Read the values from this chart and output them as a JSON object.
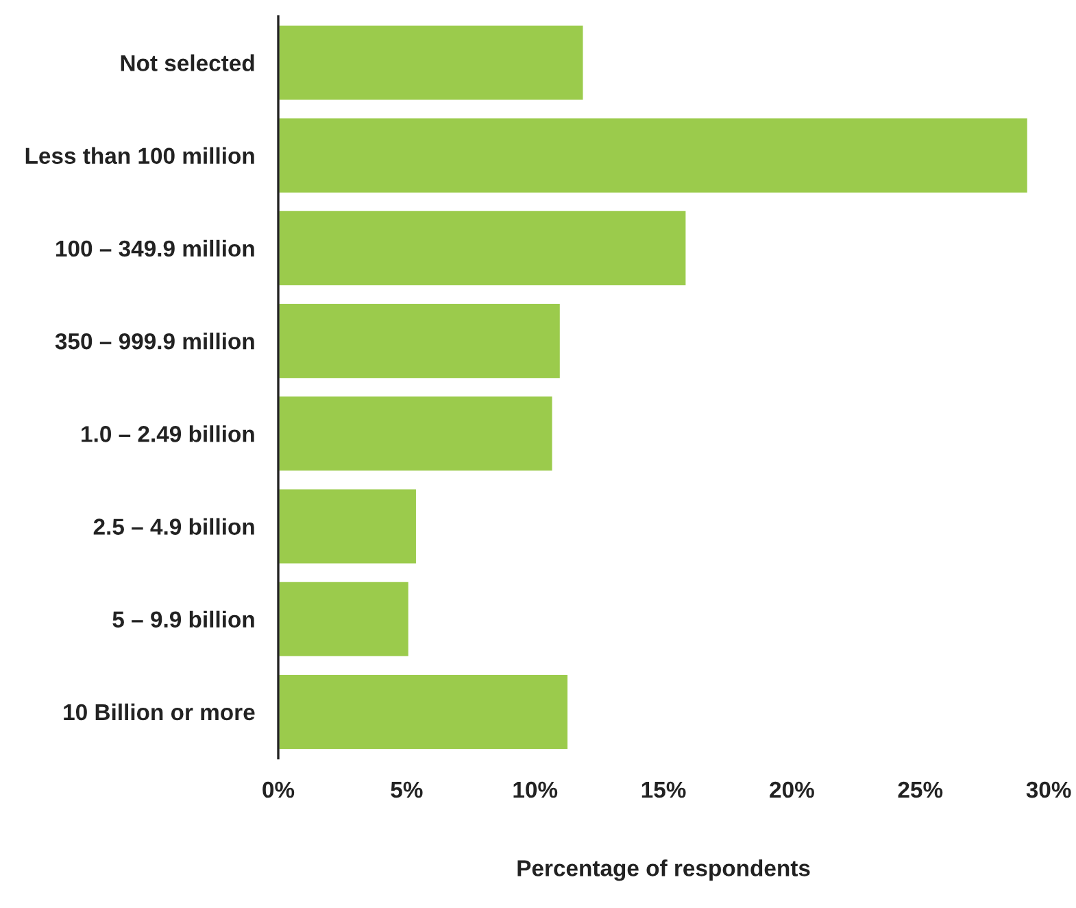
{
  "chart_data": {
    "type": "bar",
    "orientation": "horizontal",
    "categories": [
      "Not selected",
      "Less than 100 million",
      "100 – 349.9 million",
      "350 – 999.9 million",
      "1.0 – 2.49 billion",
      "2.5 – 4.9 billion",
      "5 – 9.9 billion",
      "10 Billion or more"
    ],
    "values": [
      11.9,
      29.2,
      15.9,
      11.0,
      10.7,
      5.4,
      5.1,
      11.3
    ],
    "color": "#9bcb4c",
    "xlabel": "Percentage of respondents",
    "xlim": [
      0,
      30
    ],
    "xticks": [
      {
        "value": 0,
        "label": "0%"
      },
      {
        "value": 5,
        "label": "5%"
      },
      {
        "value": 10,
        "label": "10%"
      },
      {
        "value": 15,
        "label": "15%"
      },
      {
        "value": 20,
        "label": "20%"
      },
      {
        "value": 25,
        "label": "25%"
      },
      {
        "value": 30,
        "label": "30%"
      }
    ],
    "grid": false,
    "legend": false
  }
}
